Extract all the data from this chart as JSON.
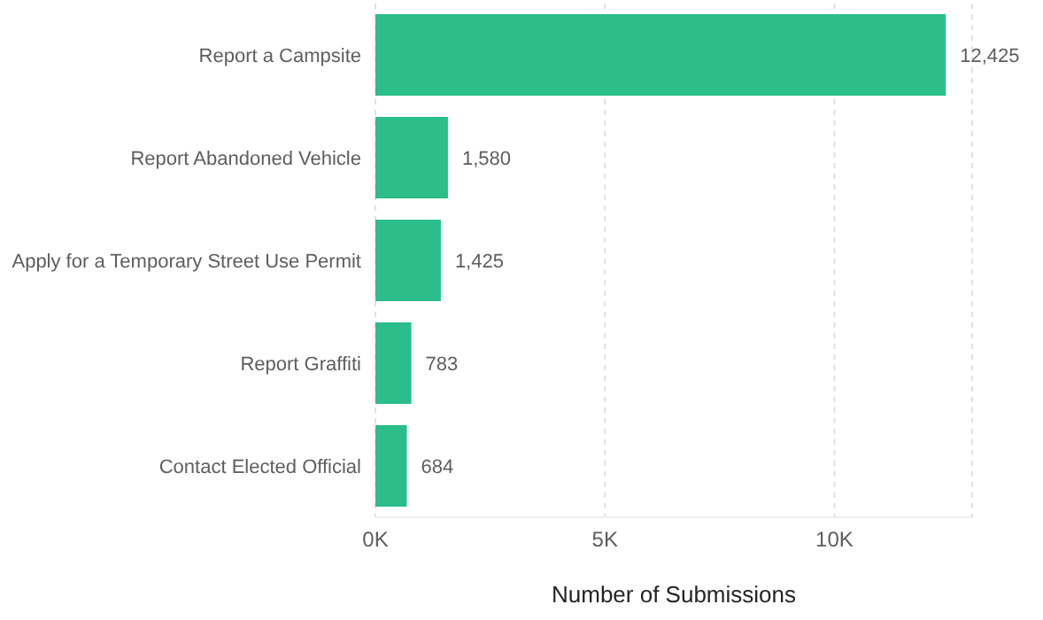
{
  "chart_data": {
    "type": "bar",
    "orientation": "horizontal",
    "xlabel": "Number of Submissions",
    "categories": [
      "Report a Campsite",
      "Report Abandoned Vehicle",
      "Apply for a Temporary Street Use Permit",
      "Report Graffiti",
      "Contact Elected Official"
    ],
    "values": [
      12425,
      1580,
      1425,
      783,
      684
    ],
    "value_labels": [
      "12,425",
      "1,580",
      "1,425",
      "783",
      "684"
    ],
    "color": "#2bbd8a",
    "xlim": [
      0,
      13000
    ],
    "xticks": [
      {
        "value": 0,
        "label": "0K"
      },
      {
        "value": 5000,
        "label": "5K"
      },
      {
        "value": 10000,
        "label": "10K"
      }
    ],
    "grid": "x"
  }
}
